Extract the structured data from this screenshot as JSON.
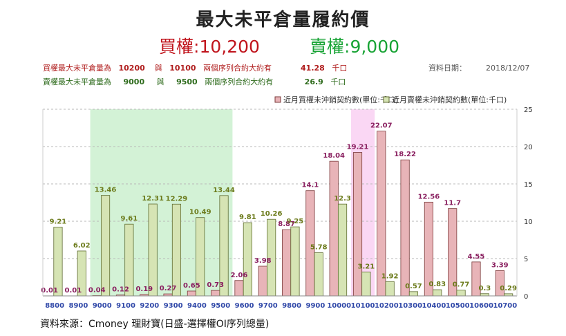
{
  "header": {
    "title": "最大未平倉量履約價",
    "call_label": "買權",
    "call_value": ":10,200",
    "put_label": "賣權",
    "put_value": ":9,000"
  },
  "info": {
    "call_max_label": "買權最大未平倉量為",
    "call_max_1": "10200",
    "with_1": "與",
    "call_max_2": "10100",
    "call_sum_label": "兩個序列合約大約有",
    "call_sum_value": "41.28",
    "unit_1": "千口",
    "date_label": "資料日期：",
    "date_value": "2018/12/07",
    "put_max_label": "賣權最大未平倉量為",
    "put_max_1": "9000",
    "with_2": "與",
    "put_max_2": "9500",
    "put_sum_label": "兩個序列合約大約有",
    "put_sum_value": "26.9",
    "unit_2": "千口"
  },
  "legend": {
    "call_label": "近月買權未沖銷契約數(單位:千口)",
    "put_label": "近月賣權未沖銷契約數(單位:千口)"
  },
  "source": "資料來源：Cmoney 理財寶(日盛-選擇權OI序列總量)",
  "colors": {
    "call_fill": "#e8b4b8",
    "call_stroke": "#7a3a3a",
    "put_fill": "#d6e4b4",
    "put_stroke": "#5d6a2e",
    "call_highlight": "#fad7f4",
    "put_highlight": "#d3f2d6",
    "call_label": "#8a2060",
    "put_label": "#6b7a1a",
    "axis_label": "#3048a8"
  },
  "chart_data": {
    "type": "bar",
    "categories": [
      "8800",
      "8900",
      "9000",
      "9100",
      "9200",
      "9300",
      "9400",
      "9500",
      "9600",
      "9700",
      "9800",
      "9900",
      "10000",
      "10100",
      "10200",
      "10300",
      "10400",
      "10500",
      "10600",
      "10700"
    ],
    "series": [
      {
        "name": "近月買權未沖銷契約數(單位:千口)",
        "values": [
          0.01,
          0.01,
          0.04,
          0.12,
          0.19,
          0.27,
          0.65,
          0.73,
          2.06,
          3.98,
          8.87,
          14.1,
          18.04,
          19.21,
          22.07,
          18.22,
          12.56,
          11.7,
          4.55,
          3.39
        ]
      },
      {
        "name": "近月賣權未沖銷契約數(單位:千口)",
        "values": [
          9.21,
          6.02,
          13.46,
          9.61,
          12.31,
          12.29,
          10.49,
          13.44,
          9.81,
          10.26,
          9.25,
          5.78,
          12.3,
          3.21,
          1.92,
          0.57,
          0.83,
          0.77,
          0.3,
          0.29
        ]
      }
    ],
    "value_labels_call": [
      "0.01",
      "0.01",
      "0.04",
      "0.12",
      "0.19",
      "0.27",
      "0.65",
      "0.73",
      "2.06",
      "3.98",
      "8.87",
      "14.1",
      "18.04",
      "19.21",
      "22.07",
      "18.22",
      "12.56",
      "11.7",
      "4.55",
      "3.39"
    ],
    "value_labels_put": [
      "9.21",
      "6.02",
      "13.46",
      "9.61",
      "12.31",
      "12.29",
      "10.49",
      "13.44",
      "9.81",
      "10.26",
      "9.25",
      "5.78",
      "12.3",
      "3.21",
      "1.92",
      "0.57",
      "0.83",
      "0.77",
      "0.3",
      "0.29"
    ],
    "y_ticks": [
      0,
      5,
      10,
      15,
      20,
      25
    ],
    "ylim": [
      0,
      25
    ],
    "y_axis_side": "right",
    "grid": true,
    "legend_position": "top-right",
    "highlight_put_range": [
      "9000",
      "9500"
    ],
    "highlight_call_range": [
      "10100",
      "10100"
    ]
  }
}
